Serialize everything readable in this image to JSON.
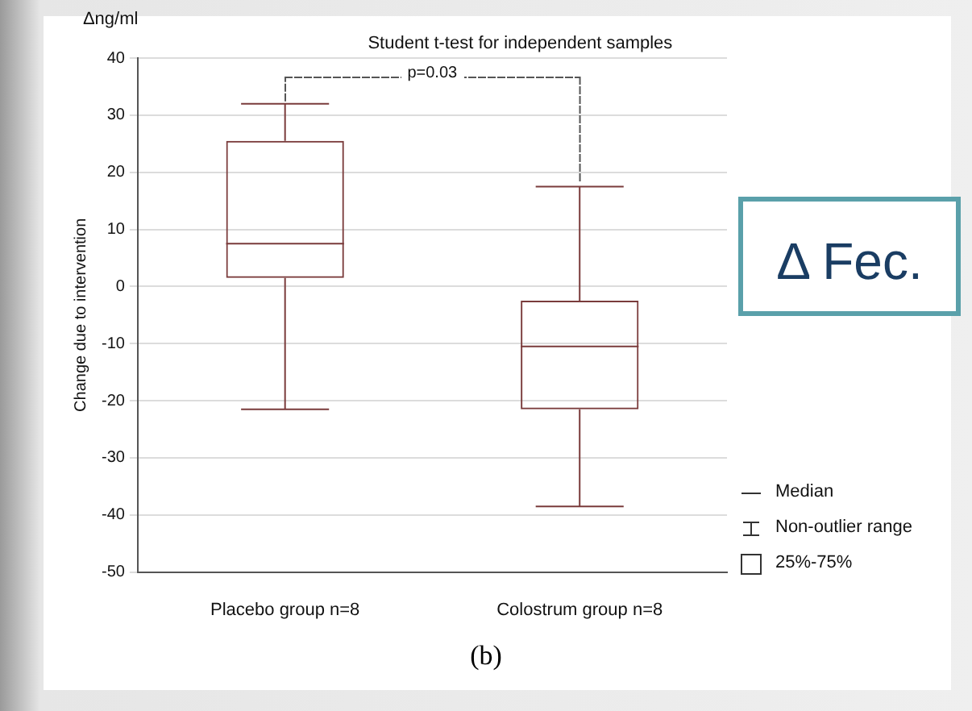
{
  "chart_data": {
    "type": "box",
    "title": "Student t-test for independent samples",
    "ylabel": "Change due to intervention",
    "categories": [
      "Placebo group n=8",
      "Colostrum group n=8"
    ],
    "color": "#7a3b3b",
    "boxes": [
      {
        "low": -21.5,
        "q1": 1.5,
        "median": 7.5,
        "q3": 25.5,
        "high": 32
      },
      {
        "low": -38.5,
        "q1": -21.5,
        "median": -10.5,
        "q3": -2.5,
        "high": 17.5
      }
    ],
    "ylim": [
      -50,
      40
    ],
    "yticks": [
      -50,
      -40,
      -30,
      -20,
      -10,
      0,
      10,
      20,
      30,
      40
    ],
    "grid": "y",
    "annotations": [
      "Δng/ml",
      "p=0.03",
      "Δ Fec.",
      "Median",
      "Non-outlier range",
      "25%-75%",
      "(b)"
    ]
  }
}
